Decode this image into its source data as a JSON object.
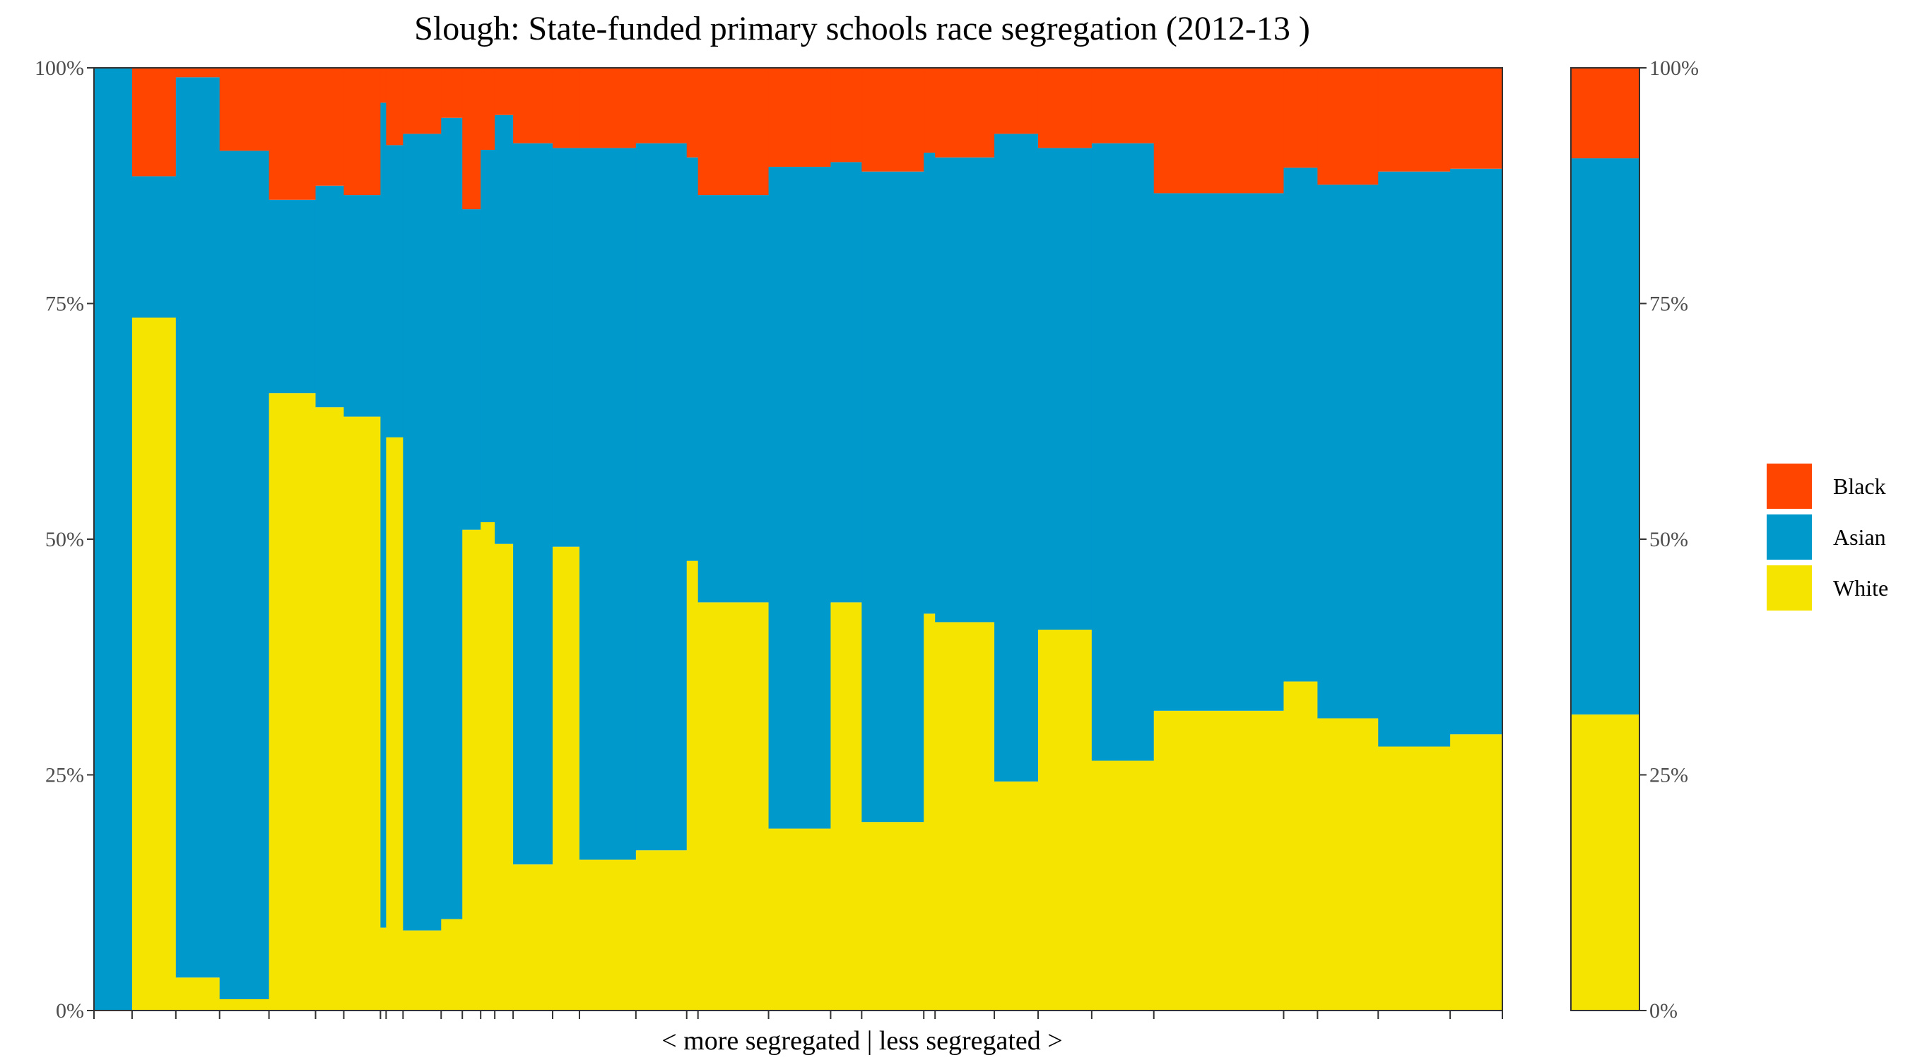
{
  "chart_data": {
    "type": "marimekko",
    "title": "Slough: State-funded primary schools race segregation (2012-13 )",
    "xlabel": "< more segregated | less segregated >",
    "ylabel": "",
    "ylim": [
      0,
      100
    ],
    "y_ticks": [
      "0%",
      "25%",
      "50%",
      "75%",
      "100%"
    ],
    "legend": {
      "position": "right",
      "entries": [
        "Black",
        "Asian",
        "White"
      ]
    },
    "colors": {
      "Black": "#ff4500",
      "Asian": "#0099cc",
      "White": "#f5e400"
    },
    "series_order_bottom_to_top": [
      "White",
      "Asian",
      "Black"
    ],
    "x_total_schools_width": 100,
    "schools": [
      {
        "width": 2.7,
        "white": 0.0,
        "asian": 100.0,
        "black": 0.0
      },
      {
        "width": 3.1,
        "white": 73.5,
        "asian": 15.0,
        "black": 11.5
      },
      {
        "width": 3.1,
        "white": 3.5,
        "asian": 95.5,
        "black": 1.0
      },
      {
        "width": 3.5,
        "white": 1.2,
        "asian": 90.0,
        "black": 8.8
      },
      {
        "width": 3.3,
        "white": 65.5,
        "asian": 20.5,
        "black": 14.0
      },
      {
        "width": 2.0,
        "white": 64.0,
        "asian": 23.5,
        "black": 12.5
      },
      {
        "width": 2.6,
        "white": 63.0,
        "asian": 23.5,
        "black": 13.5
      },
      {
        "width": 0.4,
        "white": 8.8,
        "asian": 87.5,
        "black": 3.7
      },
      {
        "width": 1.2,
        "white": 60.8,
        "asian": 31.0,
        "black": 8.2
      },
      {
        "width": 2.7,
        "white": 8.5,
        "asian": 84.5,
        "black": 7.0
      },
      {
        "width": 1.5,
        "white": 9.7,
        "asian": 85.0,
        "black": 5.3
      },
      {
        "width": 1.3,
        "white": 51.0,
        "asian": 34.0,
        "black": 15.0
      },
      {
        "width": 1.0,
        "white": 51.8,
        "asian": 39.5,
        "black": 8.7
      },
      {
        "width": 1.3,
        "white": 49.5,
        "asian": 45.5,
        "black": 5.0
      },
      {
        "width": 2.8,
        "white": 15.5,
        "asian": 76.5,
        "black": 8.0
      },
      {
        "width": 1.9,
        "white": 49.2,
        "asian": 42.3,
        "black": 8.5
      },
      {
        "width": 4.0,
        "white": 16.0,
        "asian": 75.5,
        "black": 8.5
      },
      {
        "width": 3.6,
        "white": 17.0,
        "asian": 75.0,
        "black": 8.0
      },
      {
        "width": 0.8,
        "white": 47.7,
        "asian": 42.8,
        "black": 9.5
      },
      {
        "width": 5.0,
        "white": 43.3,
        "asian": 43.2,
        "black": 13.5
      },
      {
        "width": 4.4,
        "white": 19.3,
        "asian": 70.2,
        "black": 10.5
      },
      {
        "width": 2.2,
        "white": 43.3,
        "asian": 46.7,
        "black": 10.0
      },
      {
        "width": 4.4,
        "white": 20.0,
        "asian": 69.0,
        "black": 11.0
      },
      {
        "width": 0.8,
        "white": 42.1,
        "asian": 48.9,
        "black": 9.0
      },
      {
        "width": 4.2,
        "white": 41.2,
        "asian": 49.3,
        "black": 9.5
      },
      {
        "width": 3.1,
        "white": 24.3,
        "asian": 68.7,
        "black": 7.0
      },
      {
        "width": 3.8,
        "white": 40.4,
        "asian": 51.1,
        "black": 8.5
      },
      {
        "width": 4.4,
        "white": 26.5,
        "asian": 65.5,
        "black": 8.0
      },
      {
        "width": 9.2,
        "white": 31.8,
        "asian": 54.9,
        "black": 13.3
      },
      {
        "width": 2.4,
        "white": 34.9,
        "asian": 54.5,
        "black": 10.6
      },
      {
        "width": 4.3,
        "white": 31.0,
        "asian": 56.6,
        "black": 12.4
      },
      {
        "width": 5.1,
        "white": 28.0,
        "asian": 61.0,
        "black": 11.0
      },
      {
        "width": 3.7,
        "white": 29.3,
        "asian": 60.0,
        "black": 10.7
      }
    ],
    "overall": {
      "white": 31.4,
      "asian": 59.0,
      "black": 9.6
    }
  }
}
